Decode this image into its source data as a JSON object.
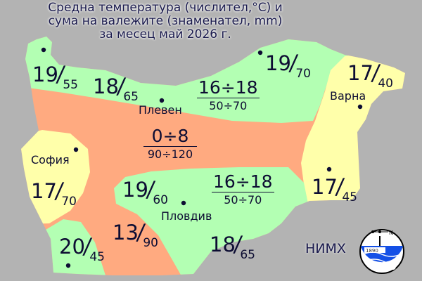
{
  "title": {
    "line1": "Средна температура (числител,°C) и",
    "line2": "сума на валежите (знаменател, mm)",
    "line3": "за месец май 2026 г."
  },
  "colors": {
    "background": "#b3b3b3",
    "green": "#b3ffb3",
    "orange": "#ffaa80",
    "yellow": "#ffffaa",
    "text": "#0d0d33"
  },
  "cities": [
    {
      "name": "Плевен"
    },
    {
      "name": "Варна"
    },
    {
      "name": "София"
    },
    {
      "name": "Пловдив"
    }
  ],
  "station_values": [
    {
      "temp": "19",
      "precip": "55"
    },
    {
      "temp": "18",
      "precip": "65"
    },
    {
      "temp": "19",
      "precip": "70"
    },
    {
      "temp": "17",
      "precip": "40"
    },
    {
      "temp": "17",
      "precip": "70"
    },
    {
      "temp": "17",
      "precip": "45"
    },
    {
      "temp": "19",
      "precip": "60"
    },
    {
      "temp": "20",
      "precip": "45"
    },
    {
      "temp": "13",
      "precip": "90"
    },
    {
      "temp": "18",
      "precip": "65"
    }
  ],
  "ranges": [
    {
      "temp": "16÷18",
      "precip": "50÷70"
    },
    {
      "temp": "0÷8",
      "precip": "90÷120"
    },
    {
      "temp": "16÷18",
      "precip": "50÷70"
    }
  ],
  "logo": {
    "text": "НИМХ",
    "year": "1890",
    "compass": "N"
  }
}
